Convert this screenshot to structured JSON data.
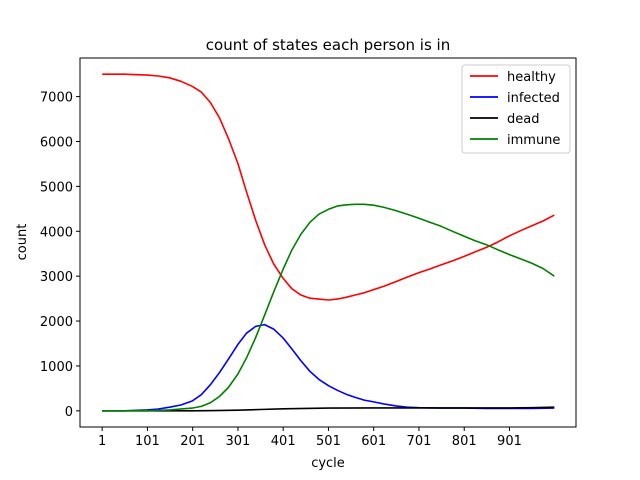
{
  "chart_data": {
    "type": "line",
    "title": "count of states each person is in",
    "xlabel": "cycle",
    "ylabel": "count",
    "xlim": [
      -48,
      1048
    ],
    "ylim": [
      -360,
      7860
    ],
    "xticks": [
      1,
      101,
      201,
      301,
      401,
      501,
      601,
      701,
      801,
      901
    ],
    "yticks": [
      0,
      1000,
      2000,
      3000,
      4000,
      5000,
      6000,
      7000
    ],
    "grid": false,
    "legend_position": "top-right",
    "series": [
      {
        "name": "healthy",
        "color": "#ff0000",
        "x": [
          1,
          50,
          101,
          125,
          150,
          175,
          200,
          220,
          240,
          260,
          280,
          301,
          320,
          340,
          360,
          380,
          401,
          420,
          440,
          460,
          480,
          501,
          520,
          540,
          560,
          580,
          601,
          625,
          650,
          675,
          701,
          725,
          750,
          775,
          801,
          825,
          850,
          875,
          901,
          925,
          950,
          975,
          1000
        ],
        "y": [
          7500,
          7500,
          7480,
          7460,
          7420,
          7340,
          7230,
          7100,
          6870,
          6530,
          6070,
          5510,
          4880,
          4250,
          3700,
          3270,
          2950,
          2720,
          2580,
          2510,
          2490,
          2470,
          2490,
          2530,
          2580,
          2630,
          2700,
          2780,
          2880,
          2980,
          3080,
          3160,
          3250,
          3340,
          3440,
          3540,
          3640,
          3760,
          3900,
          4010,
          4120,
          4230,
          4360
        ]
      },
      {
        "name": "infected",
        "color": "#0000ff",
        "x": [
          1,
          50,
          101,
          125,
          150,
          175,
          200,
          220,
          240,
          260,
          280,
          301,
          320,
          340,
          360,
          380,
          401,
          420,
          440,
          460,
          480,
          501,
          520,
          540,
          560,
          580,
          601,
          625,
          650,
          675,
          701,
          750,
          801,
          850,
          901,
          950,
          1000
        ],
        "y": [
          0,
          0,
          20,
          40,
          80,
          130,
          220,
          360,
          580,
          850,
          1150,
          1480,
          1730,
          1880,
          1920,
          1820,
          1620,
          1380,
          1120,
          880,
          700,
          560,
          460,
          370,
          300,
          240,
          200,
          150,
          110,
          80,
          70,
          60,
          60,
          55,
          55,
          55,
          60
        ]
      },
      {
        "name": "dead",
        "color": "#000000",
        "x": [
          1,
          100,
          200,
          250,
          301,
          350,
          401,
          450,
          501,
          600,
          701,
          801,
          901,
          950,
          1000
        ],
        "y": [
          0,
          0,
          0,
          5,
          15,
          30,
          45,
          55,
          60,
          65,
          65,
          65,
          65,
          70,
          80
        ]
      },
      {
        "name": "immune",
        "color": "#008000",
        "x": [
          1,
          100,
          150,
          200,
          220,
          240,
          260,
          280,
          301,
          320,
          340,
          360,
          380,
          401,
          420,
          440,
          460,
          480,
          501,
          520,
          540,
          560,
          580,
          601,
          625,
          650,
          675,
          701,
          725,
          750,
          775,
          801,
          825,
          850,
          875,
          901,
          925,
          950,
          975,
          1000
        ],
        "y": [
          0,
          0,
          20,
          60,
          100,
          180,
          320,
          520,
          820,
          1180,
          1630,
          2130,
          2650,
          3160,
          3580,
          3930,
          4200,
          4380,
          4490,
          4560,
          4590,
          4600,
          4600,
          4580,
          4530,
          4460,
          4380,
          4290,
          4200,
          4110,
          4000,
          3890,
          3790,
          3700,
          3590,
          3480,
          3390,
          3290,
          3170,
          3000
        ]
      }
    ]
  }
}
